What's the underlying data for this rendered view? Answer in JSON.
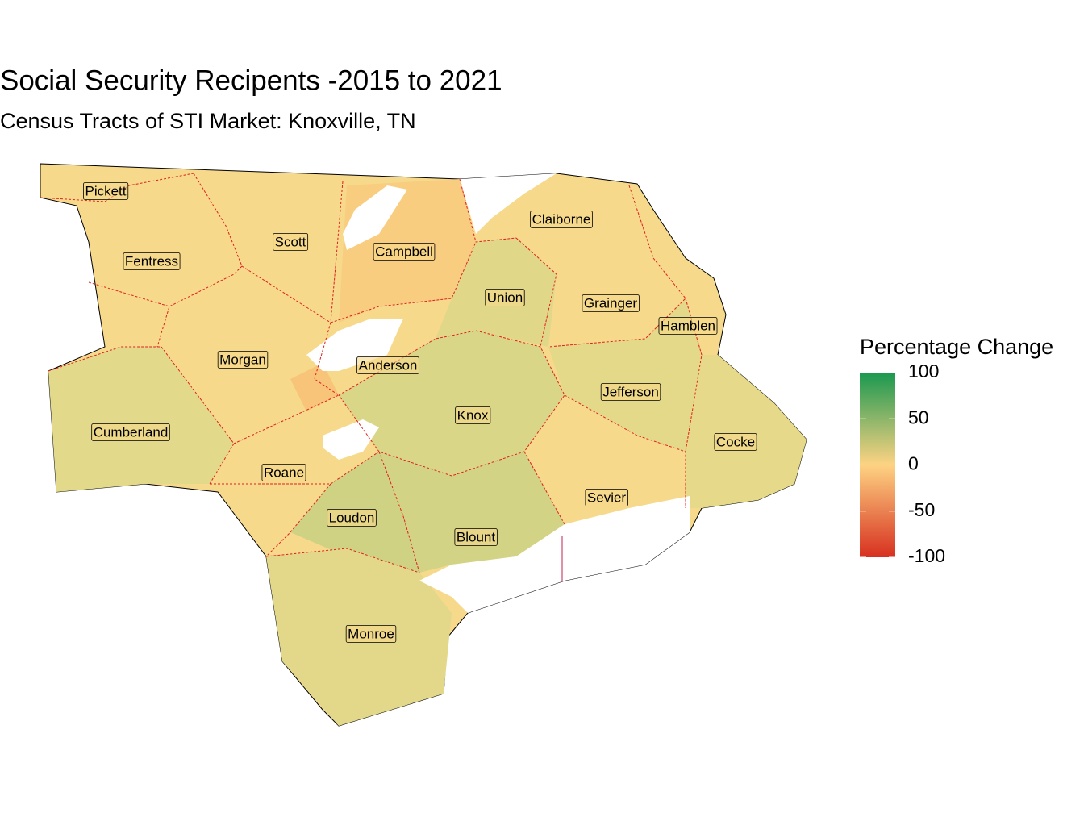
{
  "title": "Social Security Recipents -2015 to 2021",
  "subtitle": "Census Tracts of STI Market: Knoxville, TN",
  "legend": {
    "title": "Percentage Change",
    "limits": [
      -100,
      100
    ],
    "ticks": [
      100,
      50,
      0,
      -50,
      -100
    ],
    "colors": [
      "#d7301f",
      "#fdd383",
      "#1a9850"
    ]
  },
  "counties": [
    "Pickett",
    "Claiborne",
    "Scott",
    "Campbell",
    "Fentress",
    "Union",
    "Grainger",
    "Hamblen",
    "Morgan",
    "Anderson",
    "Jefferson",
    "Knox",
    "Cocke",
    "Cumberland",
    "Roane",
    "Sevier",
    "Loudon",
    "Blount",
    "Monroe"
  ]
}
